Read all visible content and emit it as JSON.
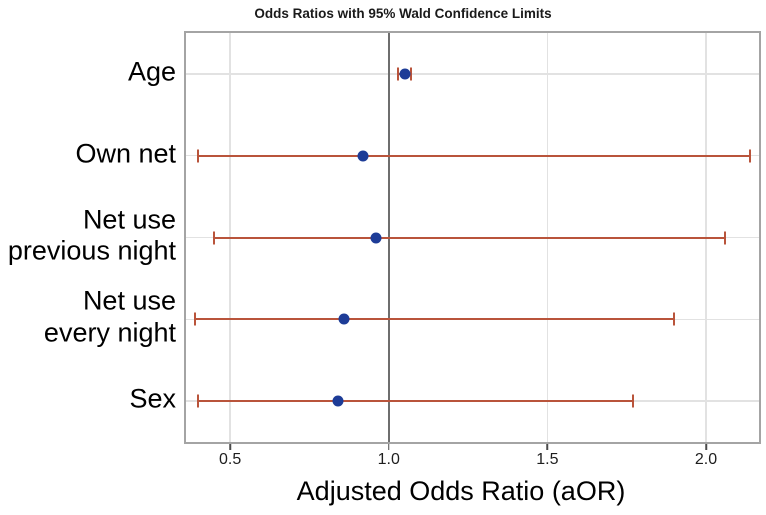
{
  "chart_data": {
    "type": "scatter",
    "subtype": "forest-plot-with-error-bars",
    "title": "Odds Ratios with 95% Wald Confidence Limits",
    "xlabel": "Adjusted Odds Ratio (aOR)",
    "ylabel": "",
    "xlim": [
      0.361,
      2.167
    ],
    "x_ticks": [
      0.5,
      1.0,
      1.5,
      2.0
    ],
    "x_tick_labels": [
      "0.5",
      "1.0",
      "1.5",
      "2.0"
    ],
    "reference_line_x": 1.0,
    "grid": "on",
    "legend": "none",
    "rows": [
      {
        "label": "Age",
        "aor": 1.05,
        "lcl": 1.03,
        "ucl": 1.07
      },
      {
        "label": "Own net",
        "aor": 0.92,
        "lcl": 0.4,
        "ucl": 2.14
      },
      {
        "label": "Net use\nprevious night",
        "aor": 0.96,
        "lcl": 0.45,
        "ucl": 2.06
      },
      {
        "label": "Net use\nevery night",
        "aor": 0.86,
        "lcl": 0.39,
        "ucl": 1.9
      },
      {
        "label": "Sex",
        "aor": 0.84,
        "lcl": 0.4,
        "ucl": 1.77
      }
    ],
    "colors": {
      "estimate_marker": "#1d3c97",
      "ci_line": "#b9543b",
      "reference_line": "#6e6e6e",
      "gridline": "#e2e2e2",
      "plot_border": "#a4a4a4"
    }
  }
}
